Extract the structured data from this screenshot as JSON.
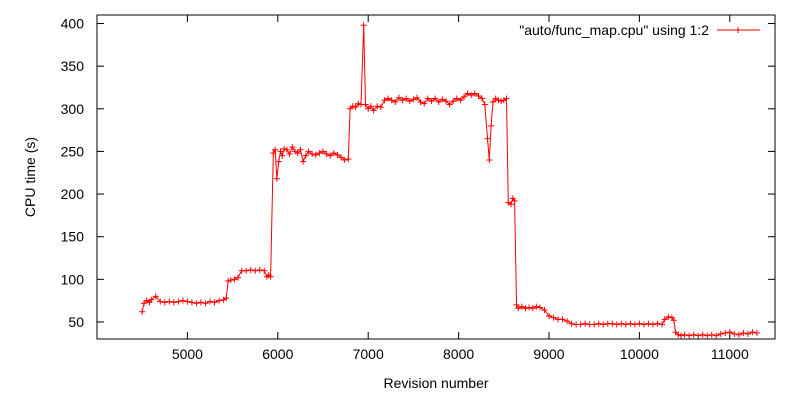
{
  "chart_data": {
    "type": "line",
    "xlabel": "Revision number",
    "ylabel": "CPU time (s)",
    "xlim": [
      4000,
      11500
    ],
    "ylim": [
      30,
      410
    ],
    "xticks": [
      5000,
      6000,
      7000,
      8000,
      9000,
      10000,
      11000
    ],
    "yticks": [
      50,
      100,
      150,
      200,
      250,
      300,
      350,
      400
    ],
    "grid": false,
    "legend": "top-right",
    "series": [
      {
        "name": "\"auto/func_map.cpu\" using 1:2",
        "color": "#ff0000",
        "marker": "plus",
        "points": [
          [
            4500,
            62
          ],
          [
            4520,
            72
          ],
          [
            4550,
            75
          ],
          [
            4580,
            73
          ],
          [
            4600,
            76
          ],
          [
            4650,
            80
          ],
          [
            4700,
            74
          ],
          [
            4750,
            73
          ],
          [
            4800,
            74
          ],
          [
            4850,
            73
          ],
          [
            4900,
            74
          ],
          [
            4950,
            75
          ],
          [
            5000,
            74
          ],
          [
            5050,
            73
          ],
          [
            5100,
            72
          ],
          [
            5150,
            73
          ],
          [
            5200,
            72
          ],
          [
            5250,
            74
          ],
          [
            5300,
            73
          ],
          [
            5350,
            75
          ],
          [
            5400,
            76
          ],
          [
            5430,
            78
          ],
          [
            5450,
            98
          ],
          [
            5480,
            99
          ],
          [
            5520,
            100
          ],
          [
            5560,
            102
          ],
          [
            5600,
            110
          ],
          [
            5650,
            110
          ],
          [
            5700,
            111
          ],
          [
            5750,
            110
          ],
          [
            5800,
            111
          ],
          [
            5850,
            110
          ],
          [
            5880,
            103
          ],
          [
            5900,
            105
          ],
          [
            5920,
            103
          ],
          [
            5950,
            248
          ],
          [
            5970,
            252
          ],
          [
            5990,
            218
          ],
          [
            6010,
            238
          ],
          [
            6030,
            250
          ],
          [
            6050,
            245
          ],
          [
            6070,
            253
          ],
          [
            6100,
            252
          ],
          [
            6130,
            247
          ],
          [
            6160,
            255
          ],
          [
            6190,
            250
          ],
          [
            6220,
            248
          ],
          [
            6250,
            252
          ],
          [
            6280,
            238
          ],
          [
            6310,
            245
          ],
          [
            6340,
            250
          ],
          [
            6380,
            247
          ],
          [
            6420,
            246
          ],
          [
            6460,
            248
          ],
          [
            6500,
            250
          ],
          [
            6540,
            247
          ],
          [
            6580,
            245
          ],
          [
            6620,
            248
          ],
          [
            6660,
            246
          ],
          [
            6700,
            243
          ],
          [
            6740,
            240
          ],
          [
            6780,
            241
          ],
          [
            6800,
            300
          ],
          [
            6830,
            303
          ],
          [
            6860,
            302
          ],
          [
            6890,
            306
          ],
          [
            6920,
            305
          ],
          [
            6950,
            398
          ],
          [
            6970,
            305
          ],
          [
            7000,
            300
          ],
          [
            7030,
            303
          ],
          [
            7060,
            298
          ],
          [
            7100,
            303
          ],
          [
            7140,
            302
          ],
          [
            7180,
            310
          ],
          [
            7220,
            312
          ],
          [
            7260,
            310
          ],
          [
            7300,
            308
          ],
          [
            7340,
            313
          ],
          [
            7380,
            310
          ],
          [
            7420,
            312
          ],
          [
            7460,
            309
          ],
          [
            7500,
            311
          ],
          [
            7540,
            313
          ],
          [
            7580,
            308
          ],
          [
            7620,
            306
          ],
          [
            7660,
            312
          ],
          [
            7700,
            309
          ],
          [
            7740,
            312
          ],
          [
            7780,
            308
          ],
          [
            7820,
            311
          ],
          [
            7860,
            309
          ],
          [
            7900,
            305
          ],
          [
            7940,
            309
          ],
          [
            7980,
            312
          ],
          [
            8020,
            310
          ],
          [
            8060,
            314
          ],
          [
            8100,
            318
          ],
          [
            8140,
            316
          ],
          [
            8180,
            318
          ],
          [
            8220,
            315
          ],
          [
            8260,
            312
          ],
          [
            8290,
            305
          ],
          [
            8320,
            265
          ],
          [
            8340,
            240
          ],
          [
            8360,
            280
          ],
          [
            8380,
            308
          ],
          [
            8410,
            312
          ],
          [
            8440,
            310
          ],
          [
            8470,
            309
          ],
          [
            8500,
            310
          ],
          [
            8530,
            312
          ],
          [
            8550,
            190
          ],
          [
            8580,
            188
          ],
          [
            8600,
            195
          ],
          [
            8620,
            192
          ],
          [
            8640,
            70
          ],
          [
            8660,
            66
          ],
          [
            8700,
            68
          ],
          [
            8740,
            66
          ],
          [
            8780,
            67
          ],
          [
            8820,
            66
          ],
          [
            8860,
            68
          ],
          [
            8900,
            67
          ],
          [
            8950,
            64
          ],
          [
            9000,
            57
          ],
          [
            9050,
            55
          ],
          [
            9100,
            53
          ],
          [
            9150,
            53
          ],
          [
            9200,
            51
          ],
          [
            9250,
            48
          ],
          [
            9300,
            47
          ],
          [
            9350,
            47
          ],
          [
            9400,
            48
          ],
          [
            9450,
            47
          ],
          [
            9500,
            47
          ],
          [
            9550,
            48
          ],
          [
            9600,
            47
          ],
          [
            9650,
            48
          ],
          [
            9700,
            48
          ],
          [
            9750,
            47
          ],
          [
            9800,
            48
          ],
          [
            9850,
            47
          ],
          [
            9900,
            48
          ],
          [
            9950,
            47
          ],
          [
            10000,
            48
          ],
          [
            10050,
            47
          ],
          [
            10100,
            48
          ],
          [
            10150,
            47
          ],
          [
            10200,
            48
          ],
          [
            10250,
            47
          ],
          [
            10280,
            53
          ],
          [
            10320,
            56
          ],
          [
            10360,
            55
          ],
          [
            10380,
            52
          ],
          [
            10400,
            38
          ],
          [
            10430,
            35
          ],
          [
            10460,
            34
          ],
          [
            10500,
            35
          ],
          [
            10550,
            34
          ],
          [
            10600,
            35
          ],
          [
            10650,
            34
          ],
          [
            10700,
            35
          ],
          [
            10750,
            34
          ],
          [
            10800,
            35
          ],
          [
            10850,
            34
          ],
          [
            10900,
            36
          ],
          [
            10950,
            37
          ],
          [
            11000,
            38
          ],
          [
            11050,
            36
          ],
          [
            11100,
            35
          ],
          [
            11150,
            37
          ],
          [
            11200,
            36
          ],
          [
            11250,
            38
          ],
          [
            11300,
            37
          ]
        ]
      }
    ]
  }
}
